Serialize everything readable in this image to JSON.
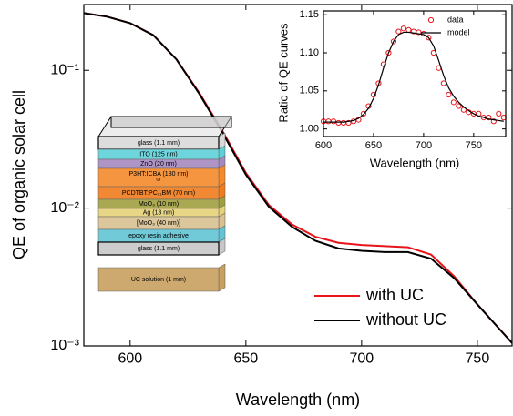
{
  "chart_data": [
    {
      "type": "line",
      "x_label": "Wavelength (nm)",
      "y_label": "QE of organic solar cell",
      "x": [
        580,
        590,
        600,
        610,
        620,
        630,
        640,
        650,
        660,
        670,
        680,
        690,
        700,
        710,
        720,
        730,
        740,
        750,
        760,
        765
      ],
      "series": [
        {
          "name": "with UC",
          "color": "#e8141a",
          "values": [
            0.26,
            0.245,
            0.22,
            0.18,
            0.12,
            0.068,
            0.036,
            0.018,
            0.0105,
            0.0076,
            0.0062,
            0.0056,
            0.0054,
            0.0053,
            0.0052,
            0.0046,
            0.0032,
            0.002,
            0.0013,
            0.00105
          ]
        },
        {
          "name": "without UC",
          "color": "#000000",
          "values": [
            0.26,
            0.245,
            0.22,
            0.18,
            0.12,
            0.067,
            0.035,
            0.0175,
            0.0102,
            0.0073,
            0.0058,
            0.0051,
            0.0049,
            0.0048,
            0.0048,
            0.0043,
            0.0031,
            0.002,
            0.0013,
            0.00105
          ]
        }
      ],
      "xlim": [
        580,
        765
      ],
      "xticks": [
        600,
        650,
        700,
        750
      ],
      "ylim": [
        0.001,
        0.3
      ],
      "log_y": true,
      "yticks": [
        {
          "value": 0.001,
          "label": "10⁻³"
        },
        {
          "value": 0.01,
          "label": "10⁻²"
        },
        {
          "value": 0.1,
          "label": "10⁻¹"
        }
      ],
      "legend": "lower right"
    },
    {
      "type": "line",
      "x_label": "Wavelength (nm)",
      "y_label": "Ratio of QE curves",
      "x": [
        600,
        605,
        610,
        615,
        620,
        625,
        630,
        635,
        640,
        645,
        650,
        655,
        660,
        665,
        670,
        675,
        680,
        685,
        690,
        695,
        700,
        705,
        710,
        715,
        720,
        725,
        730,
        735,
        740,
        745,
        750,
        755,
        760,
        765,
        770,
        775,
        780
      ],
      "series": [
        {
          "name": "data",
          "color": "#e8141a",
          "style": "markers",
          "values": [
            1.01,
            1.01,
            1.01,
            1.008,
            1.008,
            1.008,
            1.01,
            1.012,
            1.02,
            1.03,
            1.045,
            1.06,
            1.085,
            1.1,
            1.115,
            1.128,
            1.132,
            1.13,
            1.128,
            1.127,
            1.125,
            1.12,
            1.1,
            1.08,
            1.06,
            1.045,
            1.035,
            1.03,
            1.025,
            1.022,
            1.02,
            1.02,
            1.015,
            1.015,
            1.01,
            1.02,
            1.015
          ]
        },
        {
          "name": "model",
          "color": "#000000",
          "style": "line",
          "values": [
            1.009,
            1.009,
            1.009,
            1.009,
            1.009,
            1.01,
            1.011,
            1.014,
            1.019,
            1.027,
            1.04,
            1.058,
            1.08,
            1.1,
            1.115,
            1.124,
            1.127,
            1.127,
            1.126,
            1.125,
            1.124,
            1.12,
            1.109,
            1.09,
            1.07,
            1.054,
            1.043,
            1.035,
            1.029,
            1.024,
            1.02,
            1.017,
            1.015,
            1.013,
            1.012,
            1.011,
            1.01
          ]
        }
      ],
      "xlim": [
        600,
        782
      ],
      "xticks": [
        600,
        650,
        700,
        750
      ],
      "ylim": [
        0.99,
        1.155
      ],
      "yticks": [
        {
          "value": 1.0,
          "label": "1.00"
        },
        {
          "value": 1.05,
          "label": "1.05"
        },
        {
          "value": 1.1,
          "label": "1.10"
        },
        {
          "value": 1.15,
          "label": "1.15"
        }
      ],
      "legend": "upper right"
    }
  ],
  "illustration": {
    "layers": [
      "glass (1.1 mm)",
      "ITO (125 nm)",
      "ZnO (20 nm)",
      "P3HT:ICBA (180 nm)",
      "or",
      "PCDTBT:PC₇₁BM (70 nm)",
      "MoO₃ (10 nm)",
      "Ag (13 nm)",
      "[MoO₃ (40 nm)]",
      "epoxy resin adhesive",
      "glass (1.1 mm)",
      "UC solution (1 mm)"
    ]
  }
}
